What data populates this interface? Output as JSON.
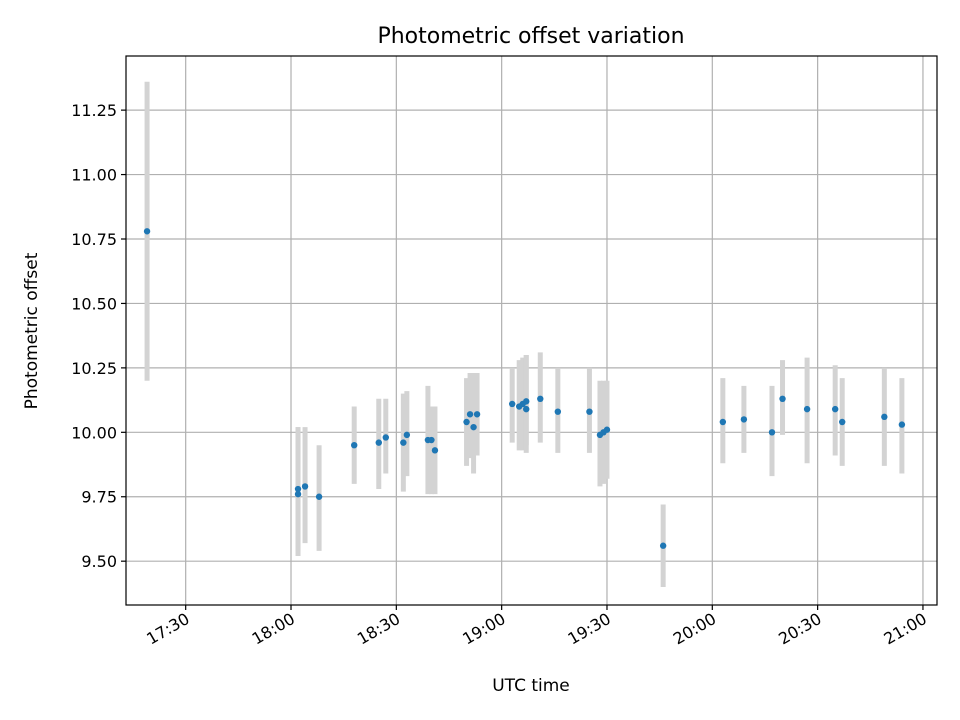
{
  "chart_data": {
    "type": "scatter",
    "title": "Photometric offset variation",
    "xlabel": "UTC time",
    "ylabel": "Photometric offset",
    "x_ticks": [
      "17:30",
      "18:00",
      "18:30",
      "19:00",
      "19:30",
      "20:00",
      "20:30",
      "21:00"
    ],
    "x_tick_minutes": [
      1050,
      1080,
      1110,
      1140,
      1170,
      1200,
      1230,
      1260
    ],
    "y_ticks": [
      "9.50",
      "9.75",
      "10.00",
      "10.25",
      "10.50",
      "10.75",
      "11.00",
      "11.25"
    ],
    "y_tick_values": [
      9.5,
      9.75,
      10.0,
      10.25,
      10.5,
      10.75,
      11.0,
      11.25
    ],
    "xlim": [
      "17:13",
      "21:04"
    ],
    "ylim": [
      9.33,
      11.46
    ],
    "grid": true,
    "legend": false,
    "point_color": "#1f77b4",
    "errorbar_color": "#d3d3d3",
    "points": [
      {
        "x": "17:19",
        "y": 10.78,
        "ylow": 10.2,
        "yhigh": 11.36
      },
      {
        "x": "18:02",
        "y": 9.76,
        "ylow": 9.52,
        "yhigh": 10.02
      },
      {
        "x": "18:02",
        "y": 9.78,
        "ylow": 9.54,
        "yhigh": 10.02
      },
      {
        "x": "18:04",
        "y": 9.79,
        "ylow": 9.57,
        "yhigh": 10.02
      },
      {
        "x": "18:08",
        "y": 9.75,
        "ylow": 9.54,
        "yhigh": 9.95
      },
      {
        "x": "18:18",
        "y": 9.95,
        "ylow": 9.8,
        "yhigh": 10.1
      },
      {
        "x": "18:25",
        "y": 9.96,
        "ylow": 9.78,
        "yhigh": 10.13
      },
      {
        "x": "18:27",
        "y": 9.98,
        "ylow": 9.84,
        "yhigh": 10.13
      },
      {
        "x": "18:32",
        "y": 9.96,
        "ylow": 9.77,
        "yhigh": 10.15
      },
      {
        "x": "18:33",
        "y": 9.99,
        "ylow": 9.83,
        "yhigh": 10.16
      },
      {
        "x": "18:39",
        "y": 9.97,
        "ylow": 9.76,
        "yhigh": 10.18
      },
      {
        "x": "18:40",
        "y": 9.97,
        "ylow": 9.76,
        "yhigh": 10.1
      },
      {
        "x": "18:41",
        "y": 9.93,
        "ylow": 9.76,
        "yhigh": 10.1
      },
      {
        "x": "18:50",
        "y": 10.04,
        "ylow": 9.87,
        "yhigh": 10.21
      },
      {
        "x": "18:51",
        "y": 10.07,
        "ylow": 9.9,
        "yhigh": 10.23
      },
      {
        "x": "18:52",
        "y": 10.02,
        "ylow": 9.84,
        "yhigh": 10.23
      },
      {
        "x": "18:53",
        "y": 10.07,
        "ylow": 9.91,
        "yhigh": 10.23
      },
      {
        "x": "19:03",
        "y": 10.11,
        "ylow": 9.96,
        "yhigh": 10.25
      },
      {
        "x": "19:05",
        "y": 10.1,
        "ylow": 9.93,
        "yhigh": 10.28
      },
      {
        "x": "19:06",
        "y": 10.11,
        "ylow": 9.93,
        "yhigh": 10.29
      },
      {
        "x": "19:07",
        "y": 10.12,
        "ylow": 9.95,
        "yhigh": 10.3
      },
      {
        "x": "19:07",
        "y": 10.09,
        "ylow": 9.92,
        "yhigh": 10.3
      },
      {
        "x": "19:11",
        "y": 10.13,
        "ylow": 9.96,
        "yhigh": 10.31
      },
      {
        "x": "19:16",
        "y": 10.08,
        "ylow": 9.92,
        "yhigh": 10.25
      },
      {
        "x": "19:25",
        "y": 10.08,
        "ylow": 9.92,
        "yhigh": 10.25
      },
      {
        "x": "19:28",
        "y": 9.99,
        "ylow": 9.79,
        "yhigh": 10.2
      },
      {
        "x": "19:29",
        "y": 10.0,
        "ylow": 9.8,
        "yhigh": 10.2
      },
      {
        "x": "19:30",
        "y": 10.01,
        "ylow": 9.82,
        "yhigh": 10.2
      },
      {
        "x": "19:46",
        "y": 9.56,
        "ylow": 9.4,
        "yhigh": 9.72
      },
      {
        "x": "20:03",
        "y": 10.04,
        "ylow": 9.88,
        "yhigh": 10.21
      },
      {
        "x": "20:09",
        "y": 10.05,
        "ylow": 9.92,
        "yhigh": 10.18
      },
      {
        "x": "20:17",
        "y": 10.0,
        "ylow": 9.83,
        "yhigh": 10.18
      },
      {
        "x": "20:20",
        "y": 10.13,
        "ylow": 9.99,
        "yhigh": 10.28
      },
      {
        "x": "20:27",
        "y": 10.09,
        "ylow": 9.88,
        "yhigh": 10.29
      },
      {
        "x": "20:35",
        "y": 10.09,
        "ylow": 9.91,
        "yhigh": 10.26
      },
      {
        "x": "20:37",
        "y": 10.04,
        "ylow": 9.87,
        "yhigh": 10.21
      },
      {
        "x": "20:49",
        "y": 10.06,
        "ylow": 9.87,
        "yhigh": 10.25
      },
      {
        "x": "20:54",
        "y": 10.03,
        "ylow": 9.84,
        "yhigh": 10.21
      }
    ]
  }
}
